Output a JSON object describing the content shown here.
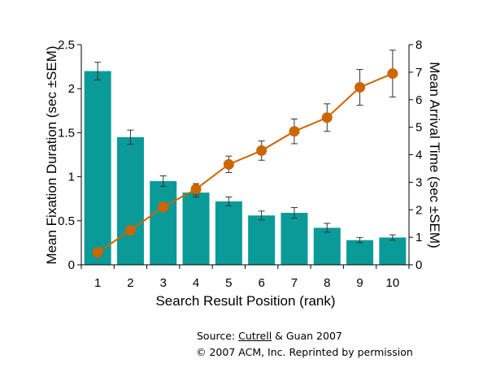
{
  "chart_data": {
    "type": "bar+line",
    "categories": [
      "1",
      "2",
      "3",
      "4",
      "5",
      "6",
      "7",
      "8",
      "9",
      "10"
    ],
    "xlabel": "Search Result Position (rank)",
    "ylabel": "Mean Fixation Duration (sec ±SEM)",
    "y2label": "Mean Arrival Time (sec ±SEM)",
    "ylim": [
      0,
      2.5
    ],
    "y2lim": [
      0,
      8
    ],
    "yticks": [
      "0",
      "0.5",
      "1",
      "1.5",
      "2",
      "2.5"
    ],
    "y2ticks": [
      "0",
      "1",
      "2",
      "3",
      "4",
      "5",
      "6",
      "7",
      "8"
    ],
    "grid": false,
    "legend": "none",
    "series": [
      {
        "kind": "bar",
        "axis": "left",
        "color": "#0a9a98",
        "values": [
          2.2,
          1.45,
          0.95,
          0.82,
          0.72,
          0.56,
          0.59,
          0.42,
          0.28,
          0.31
        ],
        "errors": [
          0.1,
          0.08,
          0.06,
          0.05,
          0.05,
          0.05,
          0.06,
          0.05,
          0.03,
          0.03
        ]
      },
      {
        "kind": "line",
        "axis": "right",
        "color": "#cc6600",
        "values": [
          0.45,
          1.25,
          2.1,
          2.75,
          3.65,
          4.15,
          4.85,
          5.35,
          6.45,
          6.95
        ],
        "errors": [
          0.05,
          0.12,
          0.15,
          0.2,
          0.3,
          0.35,
          0.45,
          0.5,
          0.65,
          0.85
        ]
      }
    ]
  },
  "source": {
    "prefix": "Source: ",
    "author_link": "Cutrell",
    "suffix": " & Guan 2007",
    "copyright": "© 2007  ACM, Inc. Reprinted by permission"
  }
}
